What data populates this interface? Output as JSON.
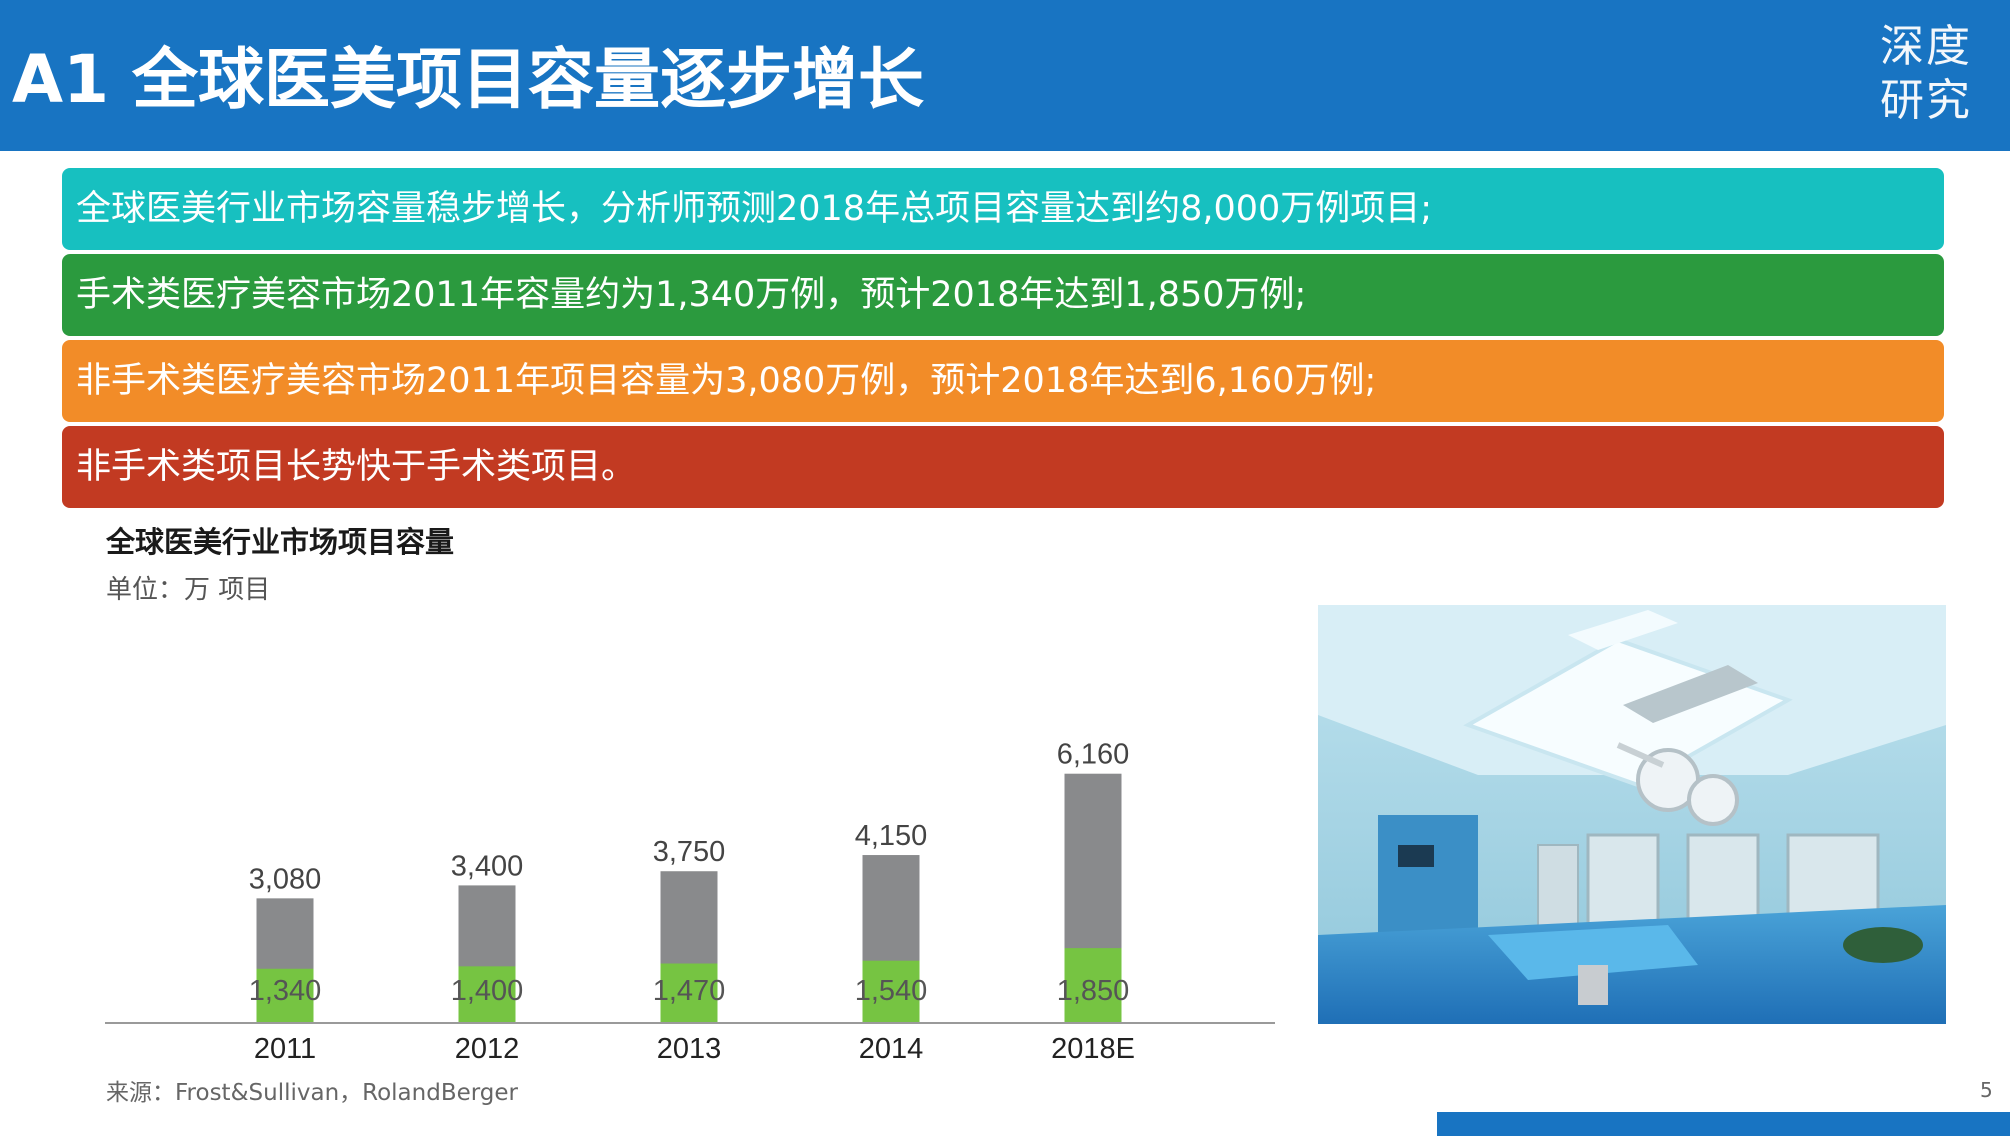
{
  "header": {
    "title": "A1 全球医美项目容量逐步增长",
    "logo_line1": "深度",
    "logo_line2": "研究",
    "bg_color": "#1874c2"
  },
  "banners": [
    {
      "text": "全球医美行业市场容量稳步增长，分析师预测2018年总项目容量达到约8,000万例项目;",
      "color": "#17c0c0"
    },
    {
      "text": "手术类医疗美容市场2011年容量约为1,340万例，预计2018年达到1,850万例;",
      "color": "#2b9a3e"
    },
    {
      "text": "非手术类医疗美容市场2011年项目容量为3,080万例，预计2018年达到6,160万例;",
      "color": "#f28c28"
    },
    {
      "text": "非手术类项目长势快于手术类项目。",
      "color": "#c23a22"
    }
  ],
  "chart_title": "全球医美行业市场项目容量",
  "chart_unit": "单位：万 项目",
  "chart_data": {
    "type": "bar",
    "stacked": true,
    "categories": [
      "2011",
      "2012",
      "2013",
      "2014",
      "2018E"
    ],
    "series": [
      {
        "name": "",
        "values": [
          1340,
          1400,
          1470,
          1540,
          1850
        ],
        "color": "#76c442"
      },
      {
        "name": "",
        "values": [
          3080,
          3400,
          3750,
          4150,
          6160
        ],
        "color": "#898a8c"
      }
    ],
    "series_labels": [
      [
        "1,340",
        "1,400",
        "1,470",
        "1,540",
        "1,850"
      ],
      [
        "3,080",
        "3,400",
        "3,750",
        "4,150",
        "6,160"
      ]
    ],
    "title": "全球医美行业市场项目容量",
    "xlabel": "",
    "ylabel": "",
    "ylim": [
      0,
      8500
    ],
    "grid": false,
    "legend": "none"
  },
  "source": "来源：Frost&Sullivan，RolandBerger",
  "page_number": "5"
}
